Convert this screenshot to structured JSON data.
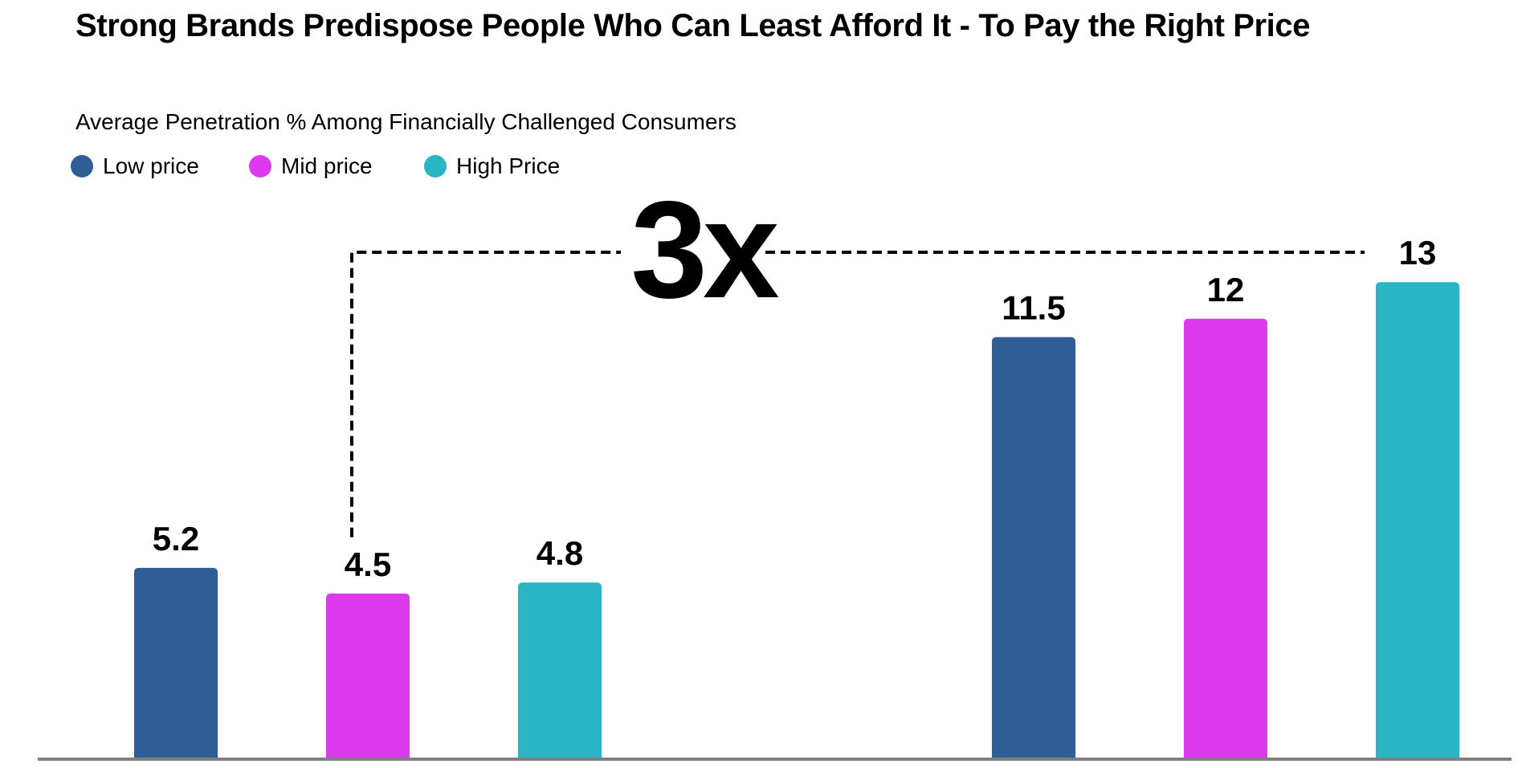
{
  "chart_data": {
    "type": "bar",
    "title": "Strong Brands Predispose People Who Can Least Afford It - To Pay the Right Price",
    "subtitle": "Average Penetration % Among Financially Challenged Consumers",
    "legend_placement": "top-left",
    "grid": false,
    "ylim": [
      0,
      14
    ],
    "groups": 2,
    "series": [
      {
        "name": "Low price",
        "color": "#2e5e96",
        "values": [
          5.2,
          11.5
        ],
        "labels": [
          "5.2",
          "11.5"
        ]
      },
      {
        "name": "Mid price",
        "color": "#dd3aee",
        "values": [
          4.5,
          12
        ],
        "labels": [
          "4.5",
          "12"
        ]
      },
      {
        "name": "High Price",
        "color": "#29b5c6",
        "values": [
          4.8,
          13
        ],
        "labels": [
          "4.8",
          "13"
        ]
      }
    ],
    "annotation": {
      "text": "3x",
      "from": "Mid price, group 1",
      "to": "High Price, group 2"
    }
  },
  "colors": {
    "axis": "#808080",
    "text": "#000000",
    "bracket": "#000000"
  }
}
